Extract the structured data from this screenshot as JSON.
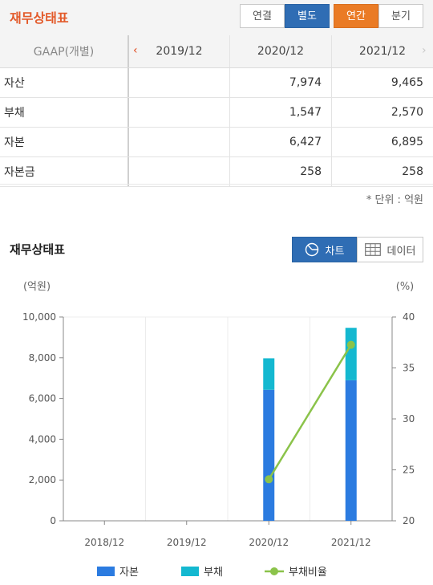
{
  "header": {
    "title": "재무상태표",
    "consolidation_tabs": [
      "연결",
      "별도"
    ],
    "consolidation_selected": "별도",
    "period_tabs": [
      "연간",
      "분기"
    ],
    "period_selected": "연간"
  },
  "table": {
    "label_header": "GAAP(개별)",
    "columns": [
      "2019/12",
      "2020/12",
      "2021/12"
    ],
    "rows": [
      {
        "label": "자산",
        "values": [
          "",
          "7,974",
          "9,465"
        ]
      },
      {
        "label": "부채",
        "values": [
          "",
          "1,547",
          "2,570"
        ]
      },
      {
        "label": "자본",
        "values": [
          "",
          "6,427",
          "6,895"
        ]
      },
      {
        "label": "자본금",
        "values": [
          "",
          "258",
          "258"
        ]
      }
    ],
    "unit_note": "* 단위 : 억원"
  },
  "chart_section": {
    "title": "재무상태표",
    "toggle_chart": "차트",
    "toggle_data": "데이터",
    "selected": "차트"
  },
  "chart_data": {
    "type": "bar",
    "stacked": true,
    "categories": [
      "2018/12",
      "2019/12",
      "2020/12",
      "2021/12"
    ],
    "series": [
      {
        "name": "자본",
        "kind": "bar",
        "axis": "left",
        "color": "#2b7be0",
        "values": [
          null,
          null,
          6427,
          6895
        ]
      },
      {
        "name": "부채",
        "kind": "bar",
        "axis": "left",
        "color": "#14b8d0",
        "values": [
          null,
          null,
          1547,
          2570
        ]
      },
      {
        "name": "부채비율",
        "kind": "line",
        "axis": "right",
        "color": "#8bc34a",
        "values": [
          null,
          null,
          24.07,
          37.27
        ]
      }
    ],
    "yleft_label": "(억원)",
    "yright_label": "(%)",
    "yleft_lim": [
      0,
      10000
    ],
    "yright_lim": [
      20,
      40
    ],
    "yleft_ticks": [
      "0",
      "2,000",
      "4,000",
      "6,000",
      "8,000",
      "10,000"
    ],
    "yright_ticks": [
      "20",
      "25",
      "30",
      "35",
      "40"
    ],
    "legend_position": "bottom",
    "grid": true
  }
}
